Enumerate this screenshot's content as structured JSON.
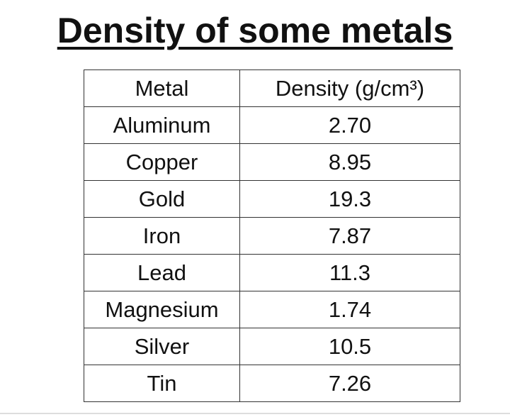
{
  "header": {
    "title": "Density of some metals"
  },
  "table": {
    "columns": [
      "Metal",
      "Density (g/cm³)"
    ],
    "rows": [
      [
        "Aluminum",
        "2.70"
      ],
      [
        "Copper",
        "8.95"
      ],
      [
        "Gold",
        "19.3"
      ],
      [
        "Iron",
        "7.87"
      ],
      [
        "Lead",
        "11.3"
      ],
      [
        "Magnesium",
        "1.74"
      ],
      [
        "Silver",
        "10.5"
      ],
      [
        "Tin",
        "7.26"
      ]
    ]
  }
}
